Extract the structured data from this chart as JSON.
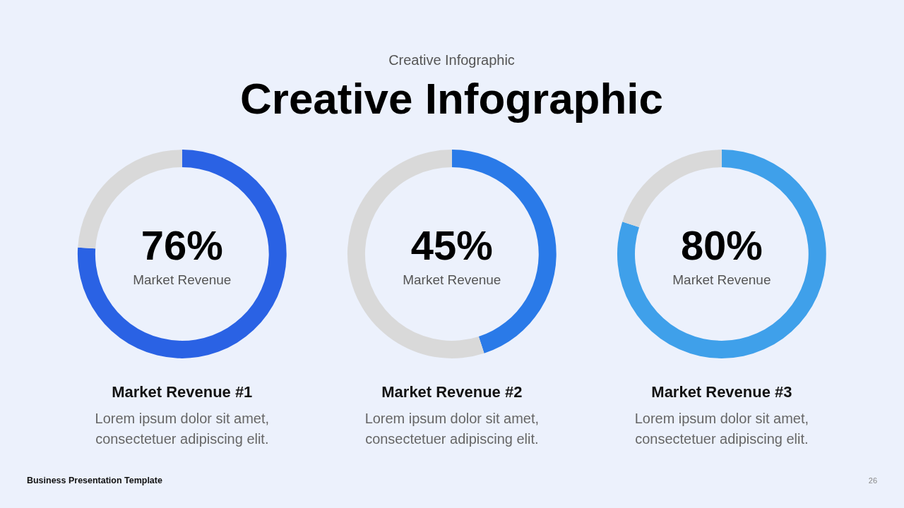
{
  "chart_data": [
    {
      "type": "other",
      "subtitle": "Creative Infographic",
      "title": "Creative Infographic"
    },
    {
      "type": "donut",
      "title": "Market Revenue #1",
      "categories": [
        null,
        null
      ],
      "values": [
        76,
        24
      ],
      "colors": [
        "#2a62e4",
        "#d9d9d9"
      ],
      "value_labels": [
        "76%",
        null
      ],
      "annotations": [
        "Market Revenue",
        "Lorem ipsum dolor sit amet,\nconsectetuer adipiscing elit."
      ]
    },
    {
      "type": "donut",
      "title": "Market Revenue #2",
      "categories": [
        null,
        null
      ],
      "values": [
        45,
        55
      ],
      "colors": [
        "#2a7ae8",
        "#d9d9d9"
      ],
      "value_labels": [
        "45%",
        null
      ],
      "annotations": [
        "Market Revenue",
        "Lorem ipsum dolor sit amet,\nconsectetuer adipiscing elit."
      ]
    },
    {
      "type": "donut",
      "title": "Market Revenue #3",
      "categories": [
        null,
        null
      ],
      "values": [
        80,
        20
      ],
      "colors": [
        "#3fa0ea",
        "#d9d9d9"
      ],
      "value_labels": [
        "80%",
        null
      ],
      "annotations": [
        "Market Revenue",
        "Lorem ipsum dolor sit amet,\nconsectetuer adipiscing elit."
      ]
    },
    {
      "type": "other",
      "annotations": [
        "Business Presentation Template",
        "26"
      ]
    }
  ]
}
